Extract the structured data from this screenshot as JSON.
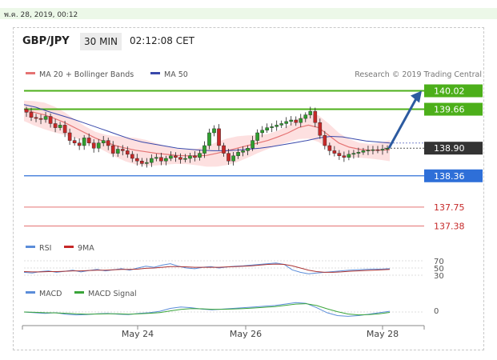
{
  "top_bar": {
    "timestamp": "พ.ค. 28, 2019, 00:12"
  },
  "header": {
    "pair": "GBP/JPY",
    "timeframe": "30 MIN",
    "time": "02:12:08 CET"
  },
  "legend": {
    "ma20": "MA 20 + Bollinger Bands",
    "ma50": "MA 50",
    "credit": "Research © 2019 Trading Central"
  },
  "colors": {
    "candle_up": "#2e9e2e",
    "candle_down": "#c62828",
    "ma20": "#e57373",
    "ma50": "#3949ab",
    "band_fill": "#fde0e0",
    "green_level": "#4caf1a",
    "blue_level": "#2e6fd8",
    "red_level": "#e57373",
    "last_price": "#333333",
    "arrow": "#2c5aa0"
  },
  "chart_data": [
    {
      "type": "line",
      "title": "GBP/JPY 30 MIN",
      "x_ticks": [
        "May 24",
        "May 26",
        "May 28"
      ],
      "ylim": [
        137.2,
        140.2
      ],
      "candles_close": [
        139.6,
        139.5,
        139.48,
        139.46,
        139.52,
        139.38,
        139.3,
        139.35,
        139.2,
        139.05,
        139.0,
        138.95,
        139.1,
        139.0,
        138.9,
        139.0,
        139.05,
        138.95,
        138.8,
        138.88,
        138.85,
        138.78,
        138.7,
        138.65,
        138.6,
        138.62,
        138.7,
        138.72,
        138.65,
        138.7,
        138.75,
        138.72,
        138.68,
        138.7,
        138.75,
        138.72,
        138.8,
        138.95,
        139.2,
        139.28,
        138.95,
        138.8,
        138.65,
        138.75,
        138.82,
        138.85,
        138.9,
        139.05,
        139.2,
        139.25,
        139.3,
        139.32,
        139.35,
        139.38,
        139.42,
        139.45,
        139.4,
        139.48,
        139.55,
        139.62,
        139.4,
        139.15,
        138.95,
        138.85,
        138.8,
        138.75,
        138.72,
        138.78,
        138.8,
        138.82,
        138.85,
        138.86,
        138.87,
        138.86,
        138.88,
        138.9
      ],
      "ma20": [
        139.65,
        139.6,
        139.55,
        139.48,
        139.4,
        139.3,
        139.2,
        139.1,
        139.02,
        138.95,
        138.9,
        138.86,
        138.83,
        138.8,
        138.78,
        138.76,
        138.75,
        138.75,
        138.76,
        138.8,
        138.85,
        138.9,
        138.95,
        139.0,
        139.05,
        139.12,
        139.2,
        139.3,
        139.35,
        139.3,
        139.15,
        139.0,
        138.92,
        138.88,
        138.86,
        138.86,
        138.87
      ],
      "ma50": [
        139.75,
        139.7,
        139.62,
        139.55,
        139.48,
        139.4,
        139.32,
        139.24,
        139.16,
        139.08,
        139.02,
        138.98,
        138.94,
        138.9,
        138.88,
        138.86,
        138.85,
        138.85,
        138.86,
        138.88,
        138.9,
        138.93,
        138.97,
        139.01,
        139.05,
        139.1,
        139.13,
        139.12,
        139.08,
        139.04,
        139.02,
        139.0
      ],
      "levels": [
        {
          "value": 140.02,
          "label": "140.02",
          "style": "resistance"
        },
        {
          "value": 139.66,
          "label": "139.66",
          "style": "resistance"
        },
        {
          "value": 138.9,
          "label": "138.90",
          "style": "last-price"
        },
        {
          "value": 138.36,
          "label": "138.36",
          "style": "support"
        },
        {
          "value": 137.75,
          "label": "137.75",
          "style": "support-minor"
        },
        {
          "value": 137.38,
          "label": "137.38",
          "style": "support-minor"
        }
      ],
      "projection_target": 140.02
    },
    {
      "type": "line",
      "legend": [
        "RSI",
        "9MA"
      ],
      "ylim": [
        20,
        80
      ],
      "y_ticks": [
        "70",
        "50",
        "30"
      ],
      "series": [
        {
          "name": "RSI",
          "values": [
            38,
            36,
            40,
            42,
            38,
            41,
            44,
            39,
            43,
            46,
            42,
            45,
            48,
            44,
            50,
            55,
            52,
            58,
            62,
            55,
            50,
            48,
            52,
            54,
            50,
            53,
            55,
            56,
            58,
            60,
            62,
            64,
            60,
            45,
            38,
            34,
            36,
            38,
            40,
            42,
            44,
            45,
            46,
            47,
            47,
            48
          ]
        },
        {
          "name": "9MA",
          "values": [
            40,
            39,
            39,
            40,
            40,
            41,
            42,
            42,
            43,
            44,
            44,
            45,
            46,
            46,
            47,
            49,
            50,
            52,
            54,
            54,
            53,
            52,
            52,
            52,
            52,
            53,
            54,
            55,
            56,
            58,
            60,
            61,
            60,
            56,
            50,
            44,
            40,
            38,
            38,
            39,
            41,
            42,
            43,
            44,
            45,
            46
          ]
        }
      ]
    },
    {
      "type": "line",
      "legend": [
        "MACD",
        "MACD Signal"
      ],
      "y_ticks": [
        "0"
      ],
      "ylim": [
        -1,
        1
      ],
      "series": [
        {
          "name": "MACD",
          "values": [
            0.0,
            -0.05,
            -0.1,
            -0.05,
            -0.15,
            -0.2,
            -0.18,
            -0.12,
            -0.1,
            -0.15,
            -0.18,
            -0.1,
            -0.05,
            0.05,
            0.25,
            0.35,
            0.3,
            0.2,
            0.15,
            0.2,
            0.25,
            0.3,
            0.35,
            0.4,
            0.45,
            0.55,
            0.65,
            0.6,
            0.3,
            -0.05,
            -0.25,
            -0.3,
            -0.25,
            -0.15,
            -0.05,
            0.05
          ]
        },
        {
          "name": "MACD Signal",
          "values": [
            0.0,
            -0.02,
            -0.05,
            -0.06,
            -0.09,
            -0.13,
            -0.15,
            -0.14,
            -0.12,
            -0.13,
            -0.15,
            -0.12,
            -0.09,
            -0.04,
            0.08,
            0.18,
            0.24,
            0.22,
            0.19,
            0.19,
            0.21,
            0.24,
            0.28,
            0.33,
            0.38,
            0.46,
            0.55,
            0.58,
            0.45,
            0.22,
            0.02,
            -0.14,
            -0.2,
            -0.18,
            -0.12,
            -0.03
          ]
        }
      ]
    }
  ]
}
